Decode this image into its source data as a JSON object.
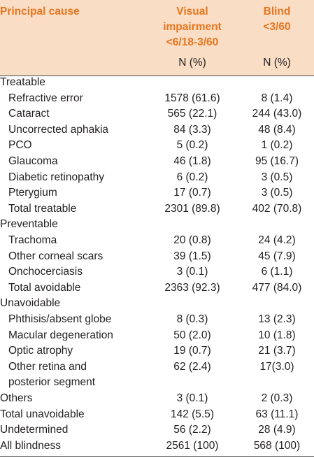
{
  "headers": {
    "col1": "Principal cause",
    "col2_lines": [
      "Visual",
      "impairment",
      "<6/18-3/60"
    ],
    "col3_lines": [
      "Blind",
      "<3/60"
    ],
    "unit2": "N (%)",
    "unit3": "N (%)"
  },
  "rows": [
    {
      "label": "Treatable",
      "indent": false,
      "vi": "",
      "blind": ""
    },
    {
      "label": "Refractive error",
      "indent": true,
      "vi": "1578 (61.6)",
      "blind": "8 (1.4)"
    },
    {
      "label": "Cataract",
      "indent": true,
      "vi": "565 (22.1)",
      "blind": "244 (43.0)"
    },
    {
      "label": "Uncorrected aphakia",
      "indent": true,
      "vi": "84 (3.3)",
      "blind": "48 (8.4)"
    },
    {
      "label": "PCO",
      "indent": true,
      "vi": "5 (0.2)",
      "blind": "1 (0.2)"
    },
    {
      "label": "Glaucoma",
      "indent": true,
      "vi": "46 (1.8)",
      "blind": "95 (16.7)"
    },
    {
      "label": "Diabetic retinopathy",
      "indent": true,
      "vi": "6 (0.2)",
      "blind": "3 (0.5)"
    },
    {
      "label": "Pterygium",
      "indent": true,
      "vi": "17 (0.7)",
      "blind": "3 (0.5)"
    },
    {
      "label": "Total treatable",
      "indent": true,
      "vi": "2301 (89.8)",
      "blind": "402 (70.8)"
    },
    {
      "label": "Preventable",
      "indent": false,
      "vi": "",
      "blind": ""
    },
    {
      "label": "Trachoma",
      "indent": true,
      "vi": "20 (0.8)",
      "blind": "24 (4.2)"
    },
    {
      "label": "Other corneal scars",
      "indent": true,
      "vi": "39 (1.5)",
      "blind": "45 (7.9)"
    },
    {
      "label": "Onchocerciasis",
      "indent": true,
      "vi": "3 (0.1)",
      "blind": "6 (1.1)"
    },
    {
      "label": "Total avoidable",
      "indent": true,
      "vi": "2363 (92.3)",
      "blind": "477 (84.0)"
    },
    {
      "label": "Unavoidable",
      "indent": false,
      "vi": "",
      "blind": ""
    },
    {
      "label": "Phthisis/absent globe",
      "indent": true,
      "vi": "8 (0.3)",
      "blind": "13 (2.3)"
    },
    {
      "label": "Macular degeneration",
      "indent": true,
      "vi": "50 (2.0)",
      "blind": "10 (1.8)"
    },
    {
      "label": "Optic atrophy",
      "indent": true,
      "vi": "19 (0.7)",
      "blind": "21 (3.7)"
    },
    {
      "label": "Other retina and",
      "indent": true,
      "vi": "62 (2.4)",
      "blind": "17(3.0)"
    },
    {
      "label": "posterior segment",
      "indent": true,
      "vi": "",
      "blind": ""
    },
    {
      "label": "Others",
      "indent": false,
      "vi": "3 (0.1)",
      "blind": "2 (0.3)"
    },
    {
      "label": "Total unavoidable",
      "indent": false,
      "vi": "142 (5.5)",
      "blind": "63 (11.1)"
    },
    {
      "label": "Undetermined",
      "indent": false,
      "vi": "56 (2.2)",
      "blind": "28 (4.9)"
    },
    {
      "label": "All blindness",
      "indent": false,
      "vi": "2561 (100)",
      "blind": "568 (100)"
    }
  ],
  "colors": {
    "header_bg": "#f9ddc5",
    "header_text": "#e8761e",
    "rule": "#4a4a4a"
  }
}
